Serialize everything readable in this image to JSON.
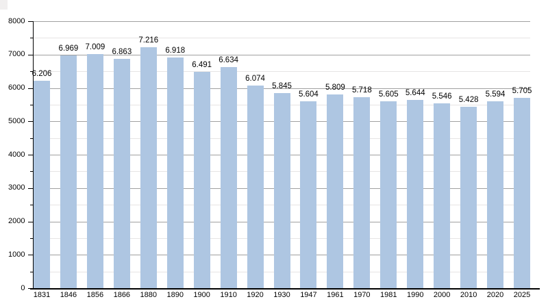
{
  "chart_data": {
    "type": "bar",
    "title": "",
    "xlabel": "",
    "ylabel": "",
    "categories": [
      "1831",
      "1846",
      "1856",
      "1866",
      "1880",
      "1890",
      "1900",
      "1910",
      "1920",
      "1930",
      "1947",
      "1961",
      "1970",
      "1981",
      "1990",
      "2000",
      "2010",
      "2020",
      "2025"
    ],
    "values": [
      6206,
      6969,
      7009,
      6863,
      7216,
      6918,
      6491,
      6634,
      6074,
      5845,
      5604,
      5809,
      5718,
      5605,
      5644,
      5546,
      5428,
      5594,
      5705
    ],
    "value_labels": [
      "6.206",
      "6.969",
      "7.009",
      "6.863",
      "7.216",
      "6.918",
      "6.491",
      "6.634",
      "6.074",
      "5.845",
      "5.604",
      "5.809",
      "5.718",
      "5.605",
      "5.644",
      "5.546",
      "5.428",
      "5.594",
      "5.705"
    ],
    "ylim": [
      0,
      8000
    ],
    "ytick_labels": [
      "0",
      "1000",
      "2000",
      "3000",
      "4000",
      "5000",
      "6000",
      "7000",
      "8000"
    ],
    "ytick_major_step": 1000,
    "ytick_minor_step": 500,
    "grid": "on",
    "legend_position": "none",
    "colors": {
      "bar_fill": "#aec6e2",
      "major_gridline": "#a0a0a0",
      "minor_gridline": "#e6e4e4",
      "axis": "#000000",
      "text": "#000000",
      "background": "#ffffff"
    }
  }
}
